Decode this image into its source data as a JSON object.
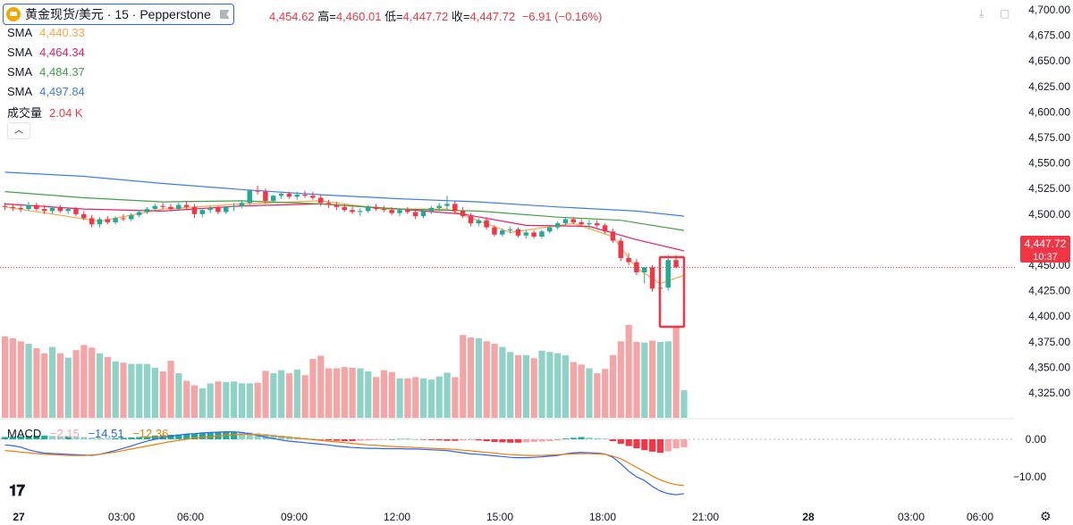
{
  "header": {
    "symbol_title": "黄金现货/美元 · 15 · Pepperstone",
    "open_value": "4,454.62",
    "high_label": "高=",
    "high_value": "4,460.01",
    "low_label": "低=",
    "low_value": "4,447.72",
    "close_label": "收=",
    "close_value": "4,447.72",
    "change": "−6.91 (−0.16%)"
  },
  "indicators": [
    {
      "name": "SMA",
      "value": "4,440.33",
      "color": "#f7a84a"
    },
    {
      "name": "SMA",
      "value": "4,464.34",
      "color": "#e91e63"
    },
    {
      "name": "SMA",
      "value": "4,484.37",
      "color": "#43a047"
    },
    {
      "name": "SMA",
      "value": "4,497.84",
      "color": "#3f7de8"
    }
  ],
  "volume_indicator": {
    "name": "成交量",
    "value": "2.04 K",
    "color": "#f23645"
  },
  "macd_legend": {
    "name": "MACD",
    "hist": "−2.15",
    "macd": "−14.51",
    "signal": "−12.36",
    "hist_color": "#f7a5a8",
    "macd_color": "#2962ff",
    "signal_color": "#f57c00"
  },
  "price_marker": {
    "price": "4,447.72",
    "countdown": "10:37",
    "color": "#f23645"
  },
  "colors": {
    "up": "#22ab94",
    "down": "#f23645",
    "vol_up": "#8fd3c7",
    "vol_down": "#f5a5a5",
    "highlight_box": "#f23645"
  },
  "chart_data": {
    "type": "candlestick",
    "timeframe": "15",
    "x_ticks": [
      "27",
      "03:00",
      "06:00",
      "09:00",
      "12:00",
      "15:00",
      "18:00",
      "21:00",
      "28",
      "03:00",
      "06:00"
    ],
    "y_ticks": [
      "4,700.00",
      "4,675.00",
      "4,650.00",
      "4,625.00",
      "4,600.00",
      "4,575.00",
      "4,550.00",
      "4,525.00",
      "4,500.00",
      "4,475.00",
      "4,450.00",
      "4,425.00",
      "4,400.00",
      "4,375.00",
      "4,350.00",
      "4,325.00"
    ],
    "ylim": [
      4310,
      4705
    ],
    "macd_y_ticks": [
      "0.00",
      "−10.00"
    ],
    "macd_ylim": [
      -16.5,
      2.5
    ],
    "candles": [
      [
        4508,
        4511,
        4504,
        4507
      ],
      [
        4507,
        4510,
        4503,
        4506
      ],
      [
        4506,
        4509,
        4502,
        4505
      ],
      [
        4505,
        4512,
        4503,
        4509
      ],
      [
        4509,
        4511,
        4503,
        4505
      ],
      [
        4505,
        4509,
        4500,
        4503
      ],
      [
        4503,
        4508,
        4500,
        4506
      ],
      [
        4506,
        4509,
        4501,
        4503
      ],
      [
        4503,
        4507,
        4500,
        4505
      ],
      [
        4505,
        4507,
        4498,
        4500
      ],
      [
        4500,
        4503,
        4494,
        4496
      ],
      [
        4496,
        4499,
        4487,
        4490
      ],
      [
        4490,
        4497,
        4487,
        4495
      ],
      [
        4495,
        4498,
        4490,
        4492
      ],
      [
        4492,
        4498,
        4490,
        4496
      ],
      [
        4496,
        4500,
        4493,
        4495
      ],
      [
        4495,
        4501,
        4493,
        4499
      ],
      [
        4499,
        4504,
        4497,
        4502
      ],
      [
        4502,
        4507,
        4500,
        4505
      ],
      [
        4505,
        4510,
        4503,
        4508
      ],
      [
        4508,
        4511,
        4505,
        4507
      ],
      [
        4507,
        4510,
        4503,
        4505
      ],
      [
        4505,
        4511,
        4503,
        4509
      ],
      [
        4509,
        4513,
        4505,
        4507
      ],
      [
        4507,
        4510,
        4496,
        4500
      ],
      [
        4500,
        4506,
        4497,
        4504
      ],
      [
        4504,
        4508,
        4501,
        4506
      ],
      [
        4506,
        4508,
        4500,
        4502
      ],
      [
        4502,
        4508,
        4500,
        4507
      ],
      [
        4507,
        4511,
        4503,
        4508
      ],
      [
        4508,
        4513,
        4506,
        4511
      ],
      [
        4511,
        4524,
        4509,
        4523
      ],
      [
        4523,
        4528,
        4519,
        4522
      ],
      [
        4522,
        4525,
        4510,
        4513
      ],
      [
        4513,
        4519,
        4511,
        4518
      ],
      [
        4518,
        4522,
        4515,
        4520
      ],
      [
        4520,
        4522,
        4515,
        4517
      ],
      [
        4517,
        4522,
        4514,
        4519
      ],
      [
        4519,
        4523,
        4516,
        4518
      ],
      [
        4518,
        4522,
        4514,
        4516
      ],
      [
        4516,
        4519,
        4508,
        4511
      ],
      [
        4511,
        4514,
        4506,
        4509
      ],
      [
        4509,
        4512,
        4504,
        4507
      ],
      [
        4507,
        4510,
        4502,
        4504
      ],
      [
        4504,
        4507,
        4500,
        4502
      ],
      [
        4502,
        4506,
        4498,
        4503
      ],
      [
        4503,
        4509,
        4501,
        4507
      ],
      [
        4507,
        4510,
        4503,
        4505
      ],
      [
        4505,
        4508,
        4502,
        4504
      ],
      [
        4504,
        4507,
        4499,
        4501
      ],
      [
        4501,
        4506,
        4498,
        4504
      ],
      [
        4504,
        4507,
        4500,
        4502
      ],
      [
        4502,
        4505,
        4495,
        4498
      ],
      [
        4498,
        4504,
        4496,
        4503
      ],
      [
        4503,
        4508,
        4500,
        4506
      ],
      [
        4506,
        4511,
        4503,
        4508
      ],
      [
        4508,
        4518,
        4505,
        4510
      ],
      [
        4510,
        4513,
        4500,
        4503
      ],
      [
        4503,
        4507,
        4496,
        4498
      ],
      [
        4498,
        4501,
        4488,
        4491
      ],
      [
        4491,
        4496,
        4488,
        4494
      ],
      [
        4494,
        4497,
        4485,
        4487
      ],
      [
        4487,
        4489,
        4478,
        4480
      ],
      [
        4480,
        4486,
        4478,
        4484
      ],
      [
        4484,
        4488,
        4481,
        4485
      ],
      [
        4485,
        4487,
        4477,
        4479
      ],
      [
        4479,
        4484,
        4476,
        4482
      ],
      [
        4482,
        4484,
        4476,
        4478
      ],
      [
        4478,
        4485,
        4476,
        4483
      ],
      [
        4483,
        4489,
        4481,
        4487
      ],
      [
        4487,
        4493,
        4485,
        4491
      ],
      [
        4491,
        4497,
        4489,
        4495
      ],
      [
        4495,
        4497,
        4490,
        4492
      ],
      [
        4492,
        4495,
        4488,
        4490
      ],
      [
        4490,
        4494,
        4486,
        4491
      ],
      [
        4491,
        4494,
        4487,
        4489
      ],
      [
        4489,
        4491,
        4481,
        4483
      ],
      [
        4483,
        4486,
        4472,
        4474
      ],
      [
        4474,
        4477,
        4454,
        4457
      ],
      [
        4457,
        4462,
        4450,
        4453
      ],
      [
        4453,
        4456,
        4440,
        4443
      ],
      [
        4443,
        4446,
        4432,
        4448
      ],
      [
        4448,
        4450,
        4424,
        4427
      ],
      [
        4427,
        4430,
        4421,
        4428
      ],
      [
        4428,
        4460,
        4425,
        4455
      ],
      [
        4455,
        4460,
        4447,
        4448
      ]
    ],
    "volumes": [
      1.3,
      1.27,
      1.22,
      1.18,
      1.11,
      1.03,
      1.13,
      1.03,
      0.96,
      1.08,
      1.16,
      1.12,
      1.03,
      0.97,
      0.9,
      0.88,
      0.86,
      0.86,
      0.86,
      0.8,
      0.74,
      0.91,
      0.71,
      0.59,
      0.52,
      0.47,
      0.55,
      0.58,
      0.57,
      0.58,
      0.55,
      0.55,
      0.56,
      0.75,
      0.71,
      0.76,
      0.71,
      0.77,
      0.68,
      0.94,
      0.99,
      0.79,
      0.79,
      0.81,
      0.8,
      0.79,
      0.74,
      0.65,
      0.76,
      0.73,
      0.63,
      0.63,
      0.65,
      0.63,
      0.61,
      0.66,
      0.72,
      0.65,
      1.32,
      1.28,
      1.27,
      1.22,
      1.18,
      1.13,
      1.05,
      1.0,
      1.0,
      0.95,
      1.07,
      1.05,
      1.03,
      1.0,
      0.89,
      0.85,
      0.79,
      0.71,
      0.78,
      1.0,
      1.22,
      1.48,
      1.21,
      1.2,
      1.23,
      1.21,
      1.22,
      1.44,
      0.44
    ],
    "macd_hist": [
      0.6,
      0.7,
      0.8,
      0.9,
      1.0,
      1.0,
      0.9,
      0.8,
      0.8,
      0.7,
      0.6,
      0.5,
      0.4,
      0.3,
      0.3,
      0.4,
      0.5,
      0.6,
      0.8,
      1.0,
      1.1,
      1.2,
      1.3,
      1.4,
      1.5,
      1.6,
      1.7,
      1.8,
      1.9,
      2.0,
      1.9,
      1.8,
      1.6,
      1.4,
      1.2,
      1.0,
      0.8,
      0.6,
      0.4,
      0.2,
      -0.1,
      -0.3,
      -0.4,
      -0.5,
      -0.5,
      -0.4,
      -0.3,
      -0.2,
      -0.1,
      0.0,
      0.1,
      0.1,
      0.0,
      -0.1,
      -0.2,
      -0.3,
      -0.4,
      -0.4,
      -0.3,
      -0.2,
      -0.3,
      -0.5,
      -0.7,
      -0.8,
      -0.9,
      -0.9,
      -0.8,
      -0.7,
      -0.6,
      -0.5,
      -0.3,
      0.2,
      0.4,
      0.6,
      0.5,
      0.3,
      0.2,
      -0.5,
      -1.2,
      -1.8,
      -2.4,
      -2.9,
      -3.3,
      -3.6,
      -3.2,
      -2.4,
      -2.15
    ],
    "macd_line": [
      -1.5,
      -1.7,
      -2.1,
      -2.8,
      -3.3,
      -3.7,
      -3.8,
      -3.9,
      -4.0,
      -4.1,
      -4.2,
      -4.3,
      -4.0,
      -3.5,
      -3.0,
      -2.4,
      -1.8,
      -1.1,
      -0.5,
      0.0,
      0.4,
      0.8,
      1.1,
      1.4,
      1.5,
      1.7,
      1.8,
      1.9,
      2.0,
      2.0,
      1.8,
      1.5,
      1.0,
      0.6,
      0.2,
      -0.2,
      -0.5,
      -0.7,
      -0.9,
      -1.1,
      -1.3,
      -1.5,
      -1.8,
      -2.0,
      -2.2,
      -2.3,
      -2.4,
      -2.4,
      -2.5,
      -2.5,
      -2.5,
      -2.6,
      -2.6,
      -2.7,
      -2.8,
      -2.9,
      -3.0,
      -3.3,
      -3.6,
      -3.9,
      -4.0,
      -4.2,
      -4.4,
      -4.6,
      -4.8,
      -4.9,
      -4.9,
      -4.8,
      -4.7,
      -4.5,
      -4.3,
      -3.9,
      -3.6,
      -3.5,
      -3.6,
      -3.7,
      -3.9,
      -4.8,
      -6.5,
      -8.5,
      -10.0,
      -11.0,
      -12.6,
      -13.8,
      -14.5,
      -14.8,
      -14.51
    ],
    "macd_signal": [
      -3.0,
      -3.2,
      -3.4,
      -3.6,
      -3.8,
      -4.0,
      -4.1,
      -4.2,
      -4.3,
      -4.3,
      -4.3,
      -4.2,
      -4.0,
      -3.7,
      -3.4,
      -3.0,
      -2.6,
      -2.2,
      -1.8,
      -1.4,
      -1.0,
      -0.6,
      -0.3,
      0.0,
      0.3,
      0.5,
      0.7,
      0.9,
      1.1,
      1.2,
      1.3,
      1.3,
      1.2,
      1.1,
      0.9,
      0.7,
      0.5,
      0.3,
      0.1,
      -0.1,
      -0.3,
      -0.5,
      -0.7,
      -0.9,
      -1.1,
      -1.3,
      -1.5,
      -1.6,
      -1.8,
      -1.9,
      -2.0,
      -2.1,
      -2.2,
      -2.3,
      -2.4,
      -2.5,
      -2.6,
      -2.7,
      -2.9,
      -3.1,
      -3.3,
      -3.5,
      -3.7,
      -3.9,
      -4.1,
      -4.2,
      -4.3,
      -4.3,
      -4.3,
      -4.2,
      -4.1,
      -4.0,
      -3.9,
      -3.8,
      -3.8,
      -3.9,
      -4.0,
      -4.5,
      -5.2,
      -6.3,
      -7.5,
      -8.6,
      -9.8,
      -10.8,
      -11.6,
      -12.1,
      -12.36
    ],
    "sma_series": [
      {
        "name": "SMA",
        "color": "#f7a84a",
        "values": [
          [
            0,
            4507
          ],
          [
            12,
            4493
          ],
          [
            20,
            4505
          ],
          [
            30,
            4510
          ],
          [
            40,
            4513
          ],
          [
            48,
            4505
          ],
          [
            56,
            4505
          ],
          [
            64,
            4482
          ],
          [
            72,
            4491
          ],
          [
            77,
            4478
          ],
          [
            80,
            4447
          ],
          [
            83,
            4432
          ],
          [
            86,
            4440
          ]
        ]
      },
      {
        "name": "SMA",
        "color": "#e91e63",
        "values": [
          [
            0,
            4510
          ],
          [
            10,
            4505
          ],
          [
            20,
            4503
          ],
          [
            30,
            4508
          ],
          [
            40,
            4510
          ],
          [
            50,
            4505
          ],
          [
            58,
            4500
          ],
          [
            66,
            4489
          ],
          [
            74,
            4488
          ],
          [
            80,
            4475
          ],
          [
            86,
            4464
          ]
        ]
      },
      {
        "name": "SMA",
        "color": "#43a047",
        "values": [
          [
            0,
            4522
          ],
          [
            10,
            4516
          ],
          [
            20,
            4512
          ],
          [
            30,
            4513
          ],
          [
            40,
            4510
          ],
          [
            50,
            4505
          ],
          [
            60,
            4503
          ],
          [
            70,
            4497
          ],
          [
            78,
            4494
          ],
          [
            86,
            4484
          ]
        ]
      },
      {
        "name": "SMA",
        "color": "#3f7de8",
        "values": [
          [
            0,
            4541
          ],
          [
            10,
            4537
          ],
          [
            20,
            4530
          ],
          [
            30,
            4524
          ],
          [
            40,
            4519
          ],
          [
            50,
            4515
          ],
          [
            60,
            4512
          ],
          [
            70,
            4507
          ],
          [
            80,
            4503
          ],
          [
            86,
            4498
          ]
        ]
      }
    ]
  }
}
